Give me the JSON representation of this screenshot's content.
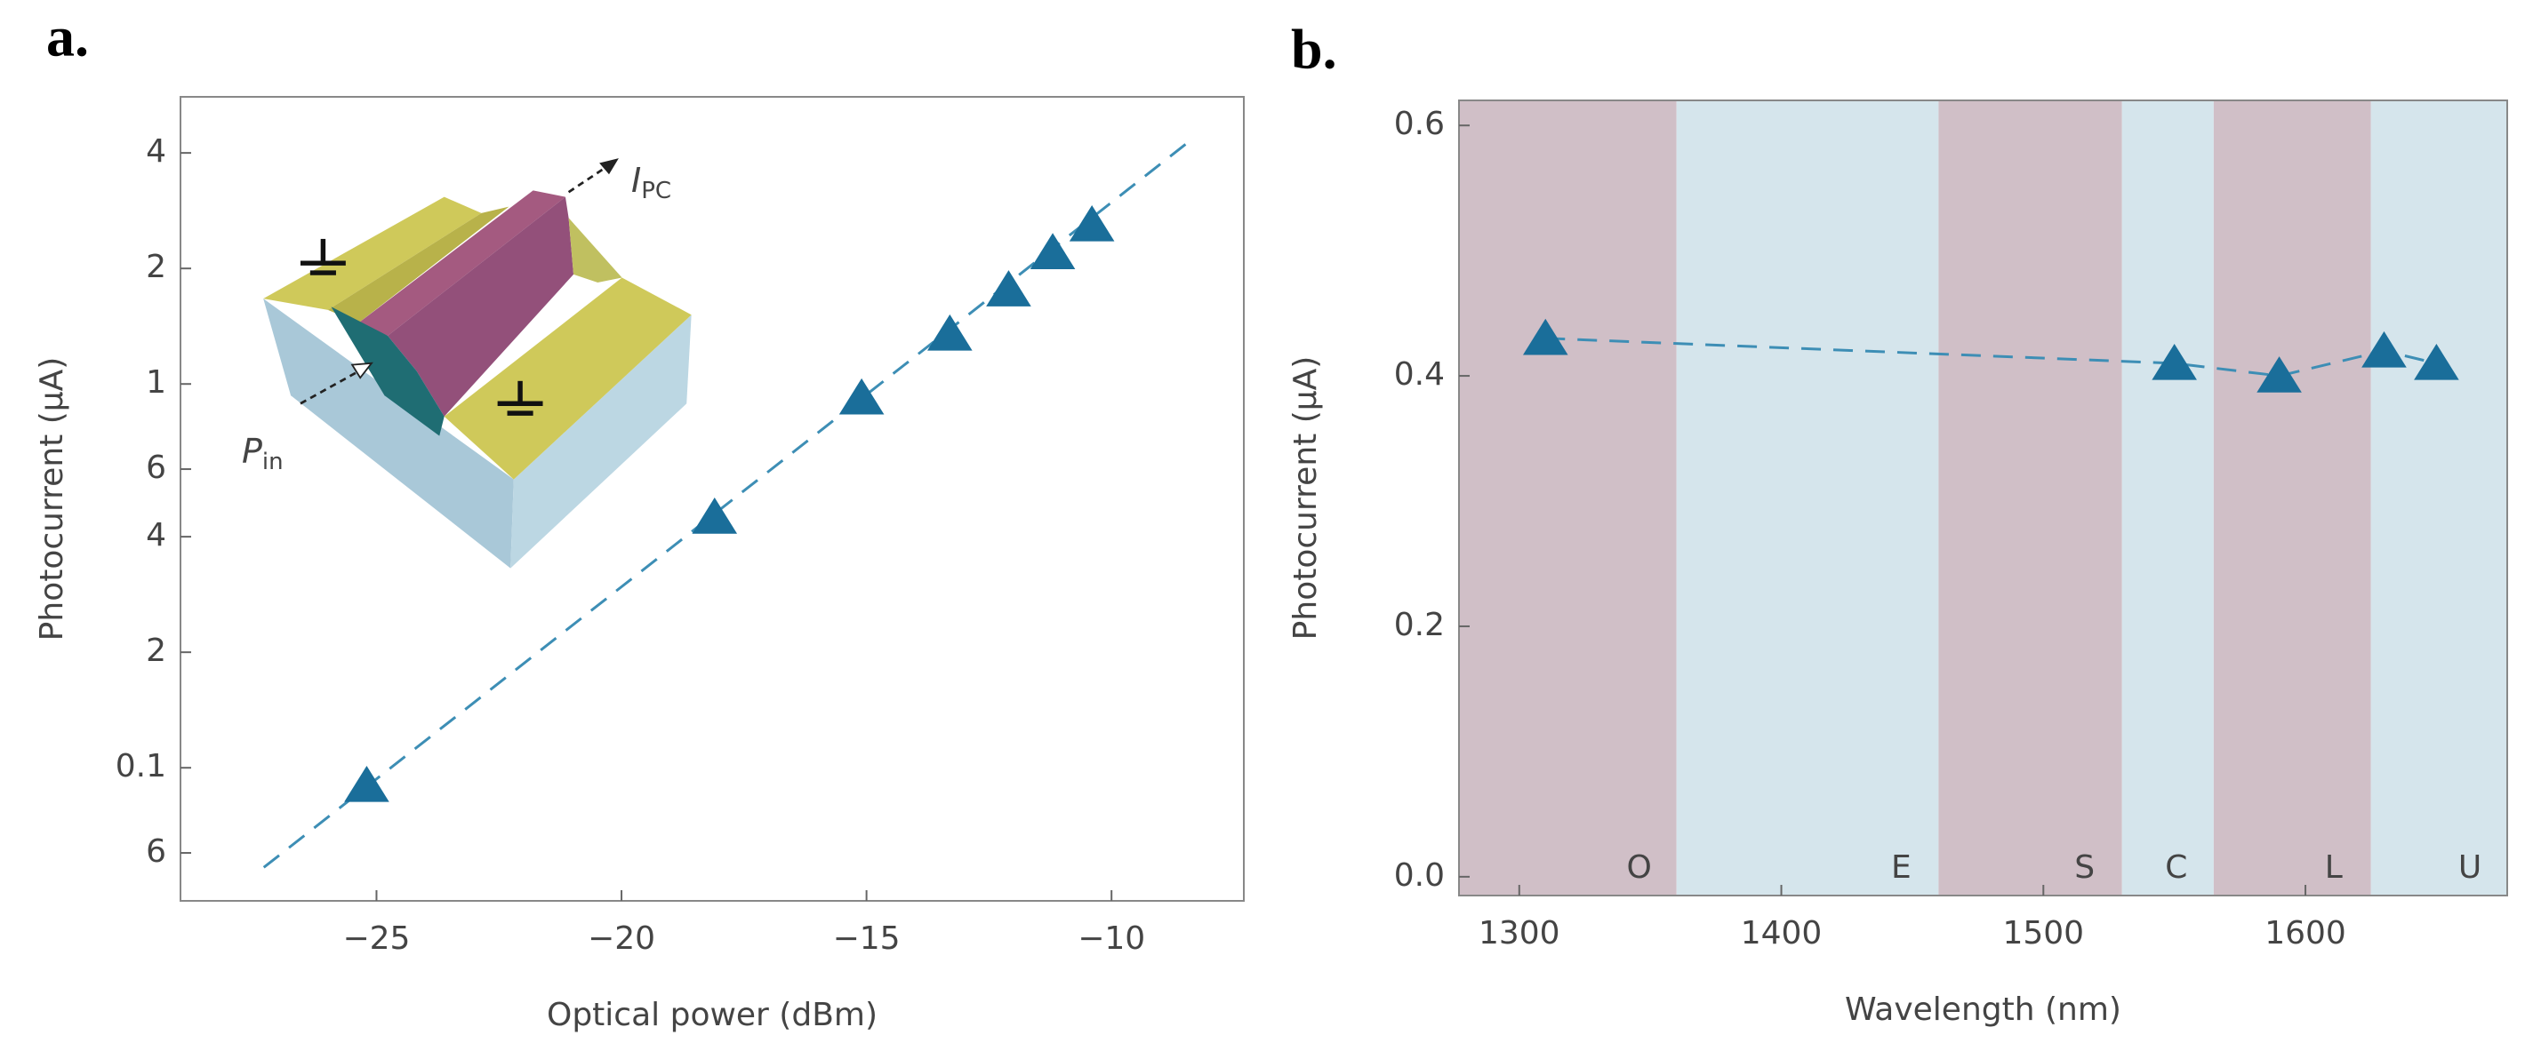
{
  "chart_data": [
    {
      "type": "scatter",
      "panel_label": "a.",
      "xlabel": "Optical power (dBm)",
      "ylabel": "Photocurrent (μA)",
      "x": [
        -25.2,
        -18.1,
        -15.1,
        -13.3,
        -12.1,
        -11.2,
        -10.4
      ],
      "values": [
        0.09,
        0.45,
        0.92,
        1.35,
        1.76,
        2.2,
        2.6
      ],
      "color": "#1a6e9a",
      "line_color": "#3d8eb5",
      "marker": "triangle",
      "fit": {
        "x": [
          -27.3,
          -8.3
        ],
        "values": [
          0.055,
          4.4
        ]
      },
      "xlim": [
        -29,
        -7.3
      ],
      "xticks": [
        {
          "value": -25,
          "label": "−25"
        },
        {
          "value": -20,
          "label": "−20"
        },
        {
          "value": -15,
          "label": "−15"
        },
        {
          "value": -10,
          "label": "−10"
        }
      ],
      "ylim": [
        0.045,
        5.6
      ],
      "log_y": true,
      "yticks": [
        {
          "value": 0.06,
          "label": "6"
        },
        0.1,
        {
          "value": 0.2,
          "label": "2"
        },
        {
          "value": 0.4,
          "label": "4"
        },
        {
          "value": 0.6,
          "label": "6"
        },
        1,
        2,
        4
      ],
      "annotations": [
        {
          "text": "I",
          "sub": "PC"
        },
        {
          "text": "P",
          "sub": "in"
        }
      ]
    },
    {
      "type": "line",
      "panel_label": "b.",
      "xlabel": "Wavelength (nm)",
      "ylabel": "Photocurrent (μA)",
      "x": [
        1310,
        1550,
        1590,
        1630,
        1650
      ],
      "values": [
        0.43,
        0.41,
        0.4,
        0.42,
        0.41
      ],
      "color": "#1a6e9a",
      "line_color": "#3d8eb5",
      "marker": "triangle",
      "line_style": "dashed",
      "xlim": [
        1277,
        1677
      ],
      "xticks": [
        1300,
        1400,
        1500,
        1600
      ],
      "ylim": [
        -0.015,
        0.62
      ],
      "yticks": [
        {
          "value": 0,
          "label": "0.0"
        },
        0.2,
        0.4,
        0.6
      ],
      "bands": [
        {
          "label": "O",
          "range": [
            1260,
            1360
          ],
          "color": "#d0bfc7"
        },
        {
          "label": "E",
          "range": [
            1360,
            1460
          ],
          "color": "#d5e5ec"
        },
        {
          "label": "S",
          "range": [
            1460,
            1530
          ],
          "color": "#d0bfc7"
        },
        {
          "label": "C",
          "range": [
            1530,
            1565
          ],
          "color": "#d5e5ec"
        },
        {
          "label": "L",
          "range": [
            1565,
            1625
          ],
          "color": "#d0bfc7"
        },
        {
          "label": "U",
          "range": [
            1625,
            1680
          ],
          "color": "#d5e5ec"
        }
      ]
    }
  ]
}
